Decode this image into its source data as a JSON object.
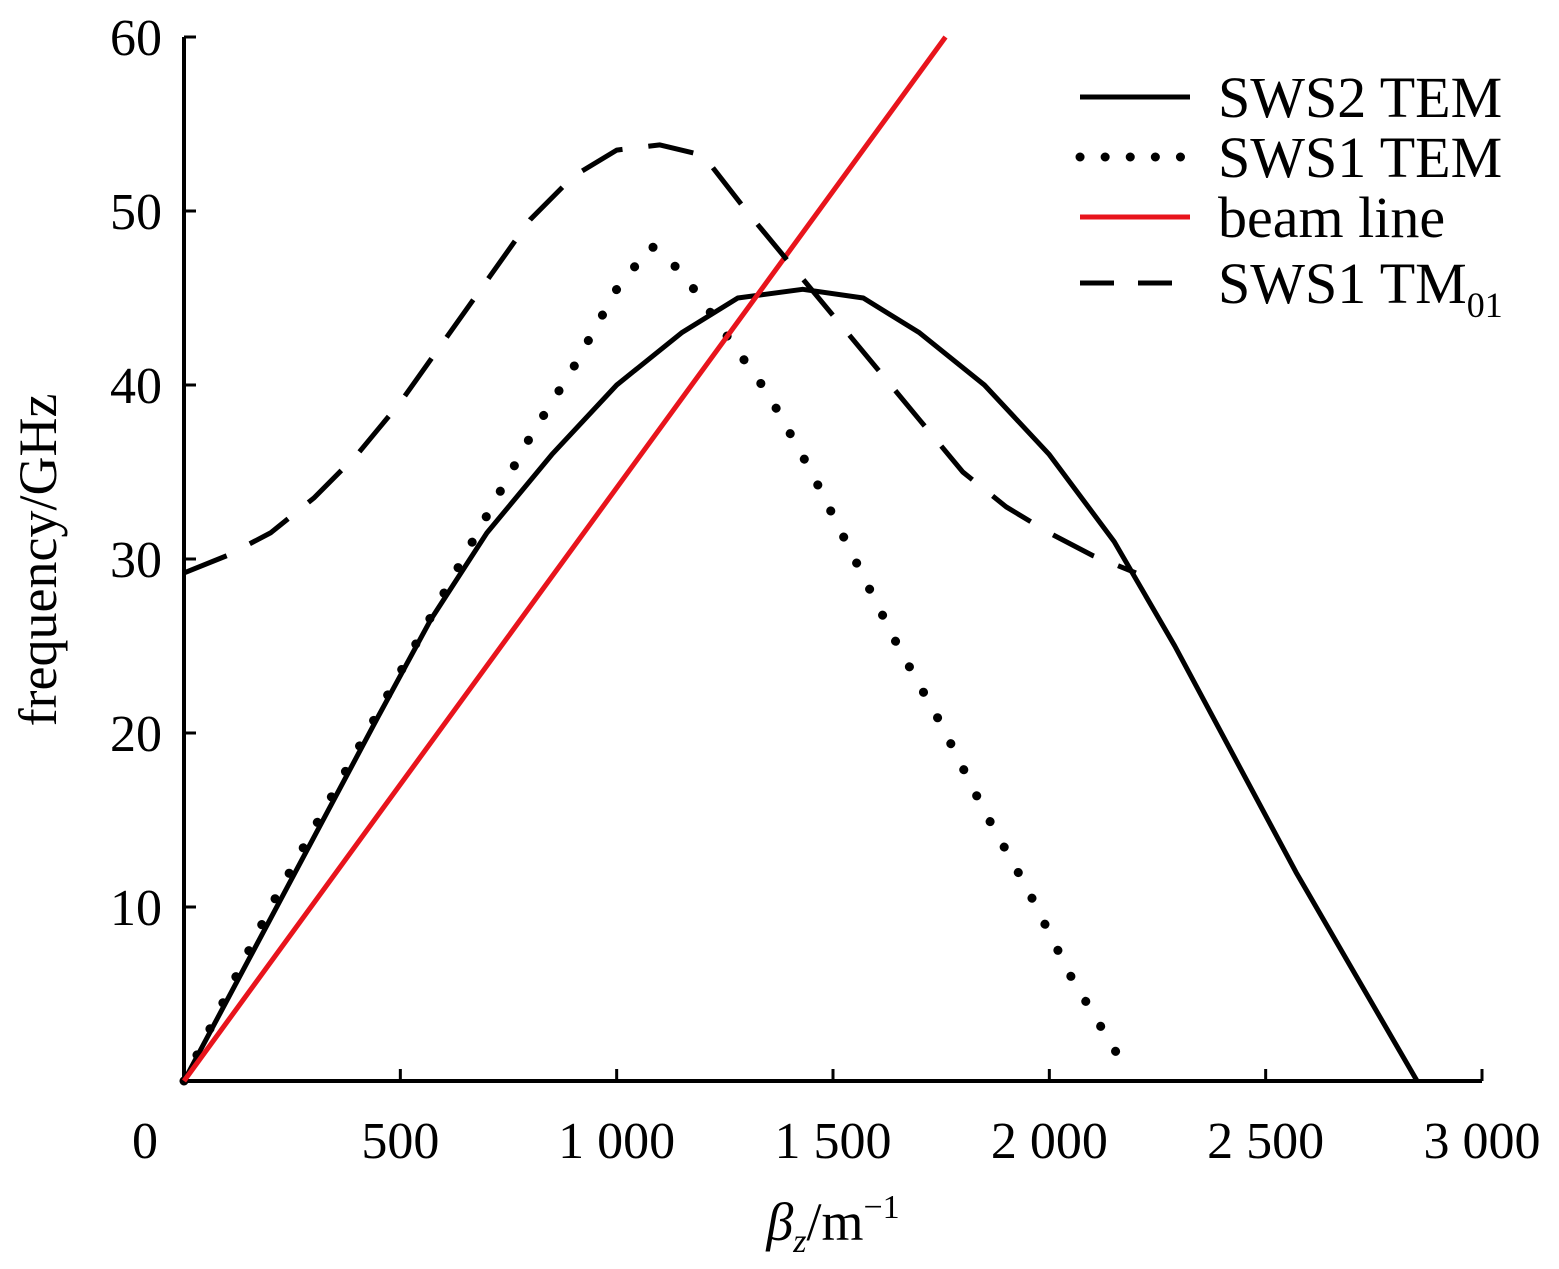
{
  "chart_data": {
    "type": "line",
    "xlabel": {
      "symbol": "β",
      "subscript": "z",
      "unit": "/m",
      "superscript": "−1"
    },
    "ylabel": "frequency/GHz",
    "xlim": [
      0,
      3000
    ],
    "ylim": [
      0,
      60
    ],
    "x_ticks": [
      0,
      500,
      1000,
      1500,
      2000,
      2500,
      3000
    ],
    "x_tick_labels": [
      "0",
      "500",
      "1 000",
      "1 500",
      "2 000",
      "2 500",
      "3 000"
    ],
    "y_ticks": [
      10,
      20,
      30,
      40,
      50,
      60
    ],
    "y_tick_labels": [
      "10",
      "20",
      "30",
      "40",
      "50",
      "60"
    ],
    "grid": false,
    "legend_position": "top-right",
    "series": [
      {
        "name": "SWS2 TEM",
        "style": "solid",
        "color": "#000000",
        "points": [
          [
            0,
            0
          ],
          [
            150,
            7
          ],
          [
            300,
            14
          ],
          [
            450,
            21
          ],
          [
            570,
            26.5
          ],
          [
            700,
            31.5
          ],
          [
            850,
            36
          ],
          [
            1000,
            40
          ],
          [
            1150,
            43
          ],
          [
            1280,
            45
          ],
          [
            1430,
            45.5
          ],
          [
            1570,
            45
          ],
          [
            1700,
            43
          ],
          [
            1850,
            40
          ],
          [
            2000,
            36
          ],
          [
            2150,
            31
          ],
          [
            2290,
            25
          ],
          [
            2430,
            18.5
          ],
          [
            2570,
            12
          ],
          [
            2710,
            6
          ],
          [
            2850,
            0
          ]
        ]
      },
      {
        "name": "SWS1 TEM",
        "style": "dotted",
        "color": "#000000",
        "points": [
          [
            0,
            0
          ],
          [
            100,
            5
          ],
          [
            200,
            10
          ],
          [
            300,
            14.5
          ],
          [
            400,
            19
          ],
          [
            500,
            23.5
          ],
          [
            600,
            28
          ],
          [
            700,
            32.5
          ],
          [
            800,
            37
          ],
          [
            900,
            41
          ],
          [
            1000,
            45.5
          ],
          [
            1080,
            48
          ],
          [
            1150,
            46.5
          ],
          [
            1250,
            43
          ],
          [
            1350,
            39.5
          ],
          [
            1450,
            35
          ],
          [
            1550,
            30
          ],
          [
            1650,
            25
          ],
          [
            1750,
            20.5
          ],
          [
            1850,
            15.5
          ],
          [
            1950,
            11
          ],
          [
            2050,
            6
          ],
          [
            2170,
            1
          ]
        ]
      },
      {
        "name": "beam line",
        "style": "solid",
        "color": "#e8141c",
        "points": [
          [
            0,
            0
          ],
          [
            1760,
            60
          ]
        ]
      },
      {
        "name": "SWS1 TM",
        "name_subscript": "01",
        "style": "dashed",
        "color": "#000000",
        "points": [
          [
            0,
            29.2
          ],
          [
            100,
            30.2
          ],
          [
            200,
            31.5
          ],
          [
            300,
            33.5
          ],
          [
            400,
            36
          ],
          [
            500,
            39
          ],
          [
            600,
            42.5
          ],
          [
            700,
            46
          ],
          [
            800,
            49.5
          ],
          [
            900,
            52
          ],
          [
            1000,
            53.5
          ],
          [
            1100,
            53.8
          ],
          [
            1200,
            53.2
          ],
          [
            1300,
            50
          ],
          [
            1400,
            47
          ],
          [
            1500,
            44
          ],
          [
            1600,
            41
          ],
          [
            1700,
            38
          ],
          [
            1800,
            35
          ],
          [
            1900,
            33
          ],
          [
            2000,
            31.5
          ],
          [
            2100,
            30.2
          ],
          [
            2200,
            29.2
          ]
        ]
      }
    ]
  }
}
